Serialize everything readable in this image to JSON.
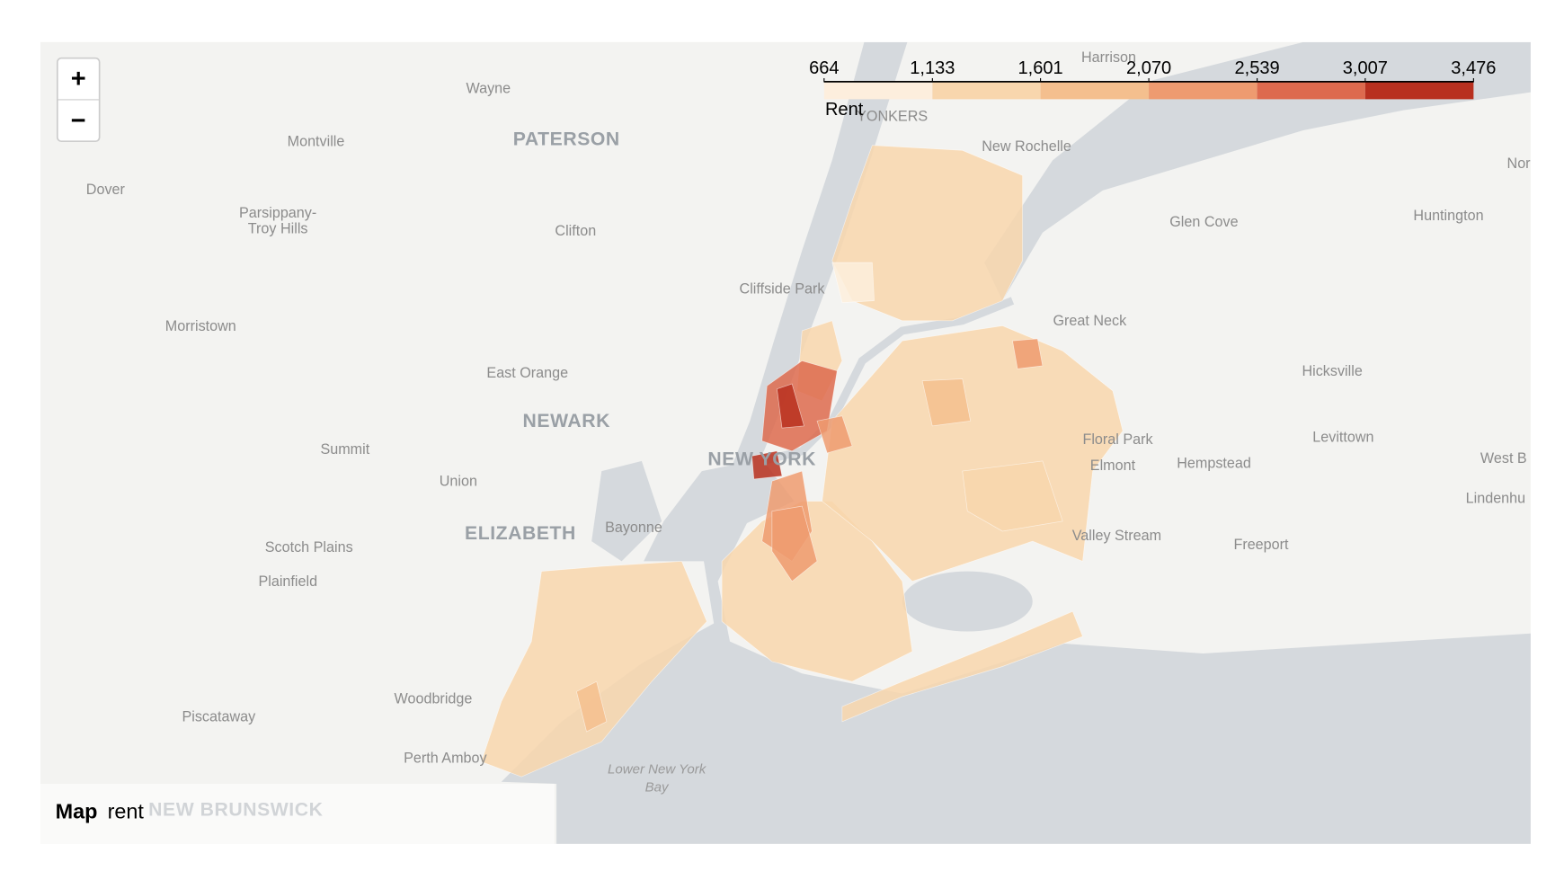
{
  "map": {
    "type": "choropleth",
    "zoom": {
      "in": "+",
      "out": "−"
    },
    "legend": {
      "title": "Rent",
      "ticks": [
        664,
        {
          "value": 1133,
          "label": "1,133"
        },
        {
          "value": 1601,
          "label": "1,601"
        },
        {
          "value": 2070,
          "label": "2,070"
        },
        {
          "value": 2539,
          "label": "2,539"
        },
        {
          "value": 3007,
          "label": "3,007"
        },
        {
          "value": 3476,
          "label": "3,476"
        }
      ],
      "colors": [
        "#fdeedd",
        "#f8d6ad",
        "#f4bf8e",
        "#ee9b70",
        "#dd6a4e",
        "#b8301f"
      ]
    },
    "values": [
      1300,
      1500,
      2300,
      1550,
      1250,
      1200,
      1600,
      2900,
      3300,
      3200,
      2200,
      2100,
      1700,
      2200,
      900,
      1800,
      1400
    ],
    "places": [
      "Wayne",
      "PATERSON",
      "Montville",
      "Dover",
      "Parsippany-",
      "Troy Hills",
      "Clifton",
      "Cliffside Park",
      "Morristown",
      "East Orange",
      "NEWARK",
      "Summit",
      "Union",
      "NEW YORK",
      "ELIZABETH",
      "Bayonne",
      "Scotch Plains",
      "Plainfield",
      "Woodbridge",
      "Piscataway",
      "Perth Amboy",
      "Lower New York",
      "Bay",
      "NEW BRUNSWICK",
      "Harrison",
      "YONKERS",
      "New Rochelle",
      "Glen Cove",
      "Huntington",
      "Great Neck",
      "Hicksville",
      "Floral Park",
      "Levittown",
      "Elmont",
      "Hempstead",
      "West B",
      "Lindenhu",
      "Nor",
      "Valley Stream",
      "Freeport"
    ],
    "caption": {
      "title": "Map",
      "subtitle": "rent"
    }
  }
}
